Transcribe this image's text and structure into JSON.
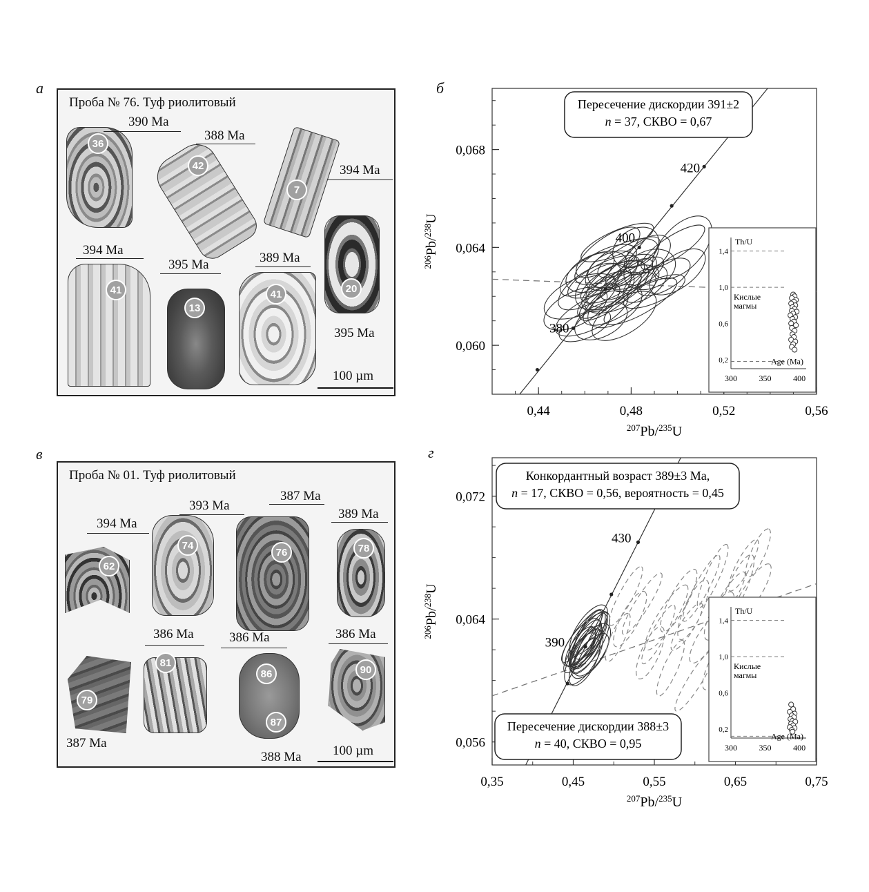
{
  "panels": {
    "a": {
      "letter": "а",
      "title": "Проба № 76. Туф риолитовый",
      "scale": "100 µm",
      "grains": [
        {
          "num": "36",
          "age": "390 Ma"
        },
        {
          "num": "42",
          "age": "388 Ma"
        },
        {
          "num": "7",
          "age": "394 Ma"
        },
        {
          "num": "41",
          "age": "394 Ma"
        },
        {
          "num": "13",
          "age": "395 Ma"
        },
        {
          "num": "41",
          "age": "389 Ma"
        },
        {
          "num": "20",
          "age": "395 Ma"
        }
      ]
    },
    "b": {
      "letter": "б",
      "callout_line1": "Пересечение дискордии 391±2",
      "callout_n": "n",
      "callout_line2": " = 37, СКВО = 0,67",
      "concordia_labels": [
        "420",
        "400",
        "380"
      ]
    },
    "c": {
      "letter": "в",
      "title": "Проба № 01. Туф риолитовый",
      "scale": "100 µm",
      "grains": [
        {
          "num": "62",
          "age": "394 Ma"
        },
        {
          "num": "74",
          "age": "393 Ma"
        },
        {
          "num": "76",
          "age": "387 Ma"
        },
        {
          "num": "78",
          "age": "389 Ma"
        },
        {
          "num": "79",
          "age": "387 Ma"
        },
        {
          "num": "81",
          "age": "386 Ma"
        },
        {
          "num": "86",
          "age": "386 Ma"
        },
        {
          "num": "87",
          "age": "388 Ma"
        },
        {
          "num": "90",
          "age": "386 Ma"
        }
      ]
    },
    "d": {
      "letter": "г",
      "callout_top_line1": "Конкордантный возраст 389±3 Ma,",
      "callout_top_n": "n",
      "callout_top_line2": " = 17, СКВО = 0,56, вероятность = 0,45",
      "callout_bot_line1": "Пересечение дискордии 388±3",
      "callout_bot_n": "n",
      "callout_bot_line2": " = 40, СКВО = 0,95",
      "concordia_labels": [
        "430",
        "390"
      ]
    }
  },
  "chart_data": [
    {
      "type": "scatter",
      "panel": "б",
      "xlabel": "207Pb/235U",
      "ylabel": "206Pb/238U",
      "xlim": [
        0.42,
        0.56
      ],
      "ylim": [
        0.058,
        0.0705
      ],
      "x_ticks": [
        "0,44",
        "0,48",
        "0,52",
        "0,56"
      ],
      "y_ticks": [
        "0,060",
        "0,064",
        "0,068"
      ],
      "concordia_ages": [
        {
          "age": 420,
          "x": 0.5115,
          "y": 0.0673
        },
        {
          "age": 400,
          "x": 0.4835,
          "y": 0.064
        },
        {
          "age": 380,
          "x": 0.455,
          "y": 0.0607
        }
      ],
      "discordia": {
        "style": "dashed",
        "x1": 0.42,
        "y1": 0.0627,
        "x2": 0.56,
        "y2": 0.0622
      },
      "error_ellipses_count": 37,
      "inset": {
        "ylabel": "Th/U",
        "xlabel": "Age (Ma)",
        "x_ticks": [
          "300",
          "350",
          "400"
        ],
        "y_ticks": [
          "0,2",
          "0,6",
          "1,0",
          "1,4"
        ],
        "note": "Кислые магмы",
        "xlim": [
          300,
          410
        ],
        "ylim": [
          0.1,
          1.55
        ],
        "ref_lines": [
          1.4,
          1.0,
          0.18
        ],
        "points": [
          [
            391,
            0.92
          ],
          [
            393,
            0.9
          ],
          [
            389,
            0.88
          ],
          [
            395,
            0.86
          ],
          [
            392,
            0.84
          ],
          [
            388,
            0.82
          ],
          [
            394,
            0.8
          ],
          [
            390,
            0.78
          ],
          [
            393,
            0.76
          ],
          [
            389,
            0.74
          ],
          [
            396,
            0.73
          ],
          [
            391,
            0.71
          ],
          [
            387,
            0.69
          ],
          [
            394,
            0.67
          ],
          [
            390,
            0.65
          ],
          [
            392,
            0.62
          ],
          [
            388,
            0.6
          ],
          [
            395,
            0.58
          ],
          [
            389,
            0.55
          ],
          [
            393,
            0.52
          ],
          [
            390,
            0.48
          ],
          [
            392,
            0.45
          ],
          [
            388,
            0.42
          ],
          [
            394,
            0.4
          ],
          [
            391,
            0.37
          ],
          [
            389,
            0.34
          ],
          [
            393,
            0.31
          ]
        ]
      }
    },
    {
      "type": "scatter",
      "panel": "г",
      "xlabel": "207Pb/235U",
      "ylabel": "206Pb/238U",
      "xlim": [
        0.35,
        0.75
      ],
      "ylim": [
        0.0545,
        0.0745
      ],
      "x_ticks": [
        "0,35",
        "0,45",
        "0,55",
        "0,65",
        "0,75"
      ],
      "y_ticks": [
        "0,056",
        "0,064",
        "0,072"
      ],
      "concordia_ages": [
        {
          "age": 430,
          "x": 0.53,
          "y": 0.069
        },
        {
          "age": 390,
          "x": 0.465,
          "y": 0.0622
        }
      ],
      "discordia": {
        "style": "dashed",
        "x1": 0.35,
        "y1": 0.059,
        "x2": 0.75,
        "y2": 0.0663
      },
      "concordant_ellipses_count": 17,
      "discordant_ellipses_count": 23,
      "inset": {
        "ylabel": "Th/U",
        "xlabel": "Age (Ma)",
        "x_ticks": [
          "300",
          "350",
          "400"
        ],
        "y_ticks": [
          "0,2",
          "0,6",
          "1,0",
          "1,4"
        ],
        "note": "Кислые магмы",
        "xlim": [
          300,
          410
        ],
        "ylim": [
          0.1,
          1.55
        ],
        "ref_lines": [
          1.4,
          1.0,
          0.12
        ],
        "points": [
          [
            388,
            0.47
          ],
          [
            391,
            0.42
          ],
          [
            386,
            0.39
          ],
          [
            393,
            0.37
          ],
          [
            389,
            0.35
          ],
          [
            392,
            0.33
          ],
          [
            387,
            0.31
          ],
          [
            390,
            0.29
          ],
          [
            394,
            0.28
          ],
          [
            388,
            0.26
          ],
          [
            391,
            0.24
          ],
          [
            386,
            0.22
          ],
          [
            393,
            0.21
          ],
          [
            389,
            0.19
          ],
          [
            390,
            0.17
          ]
        ]
      }
    }
  ]
}
